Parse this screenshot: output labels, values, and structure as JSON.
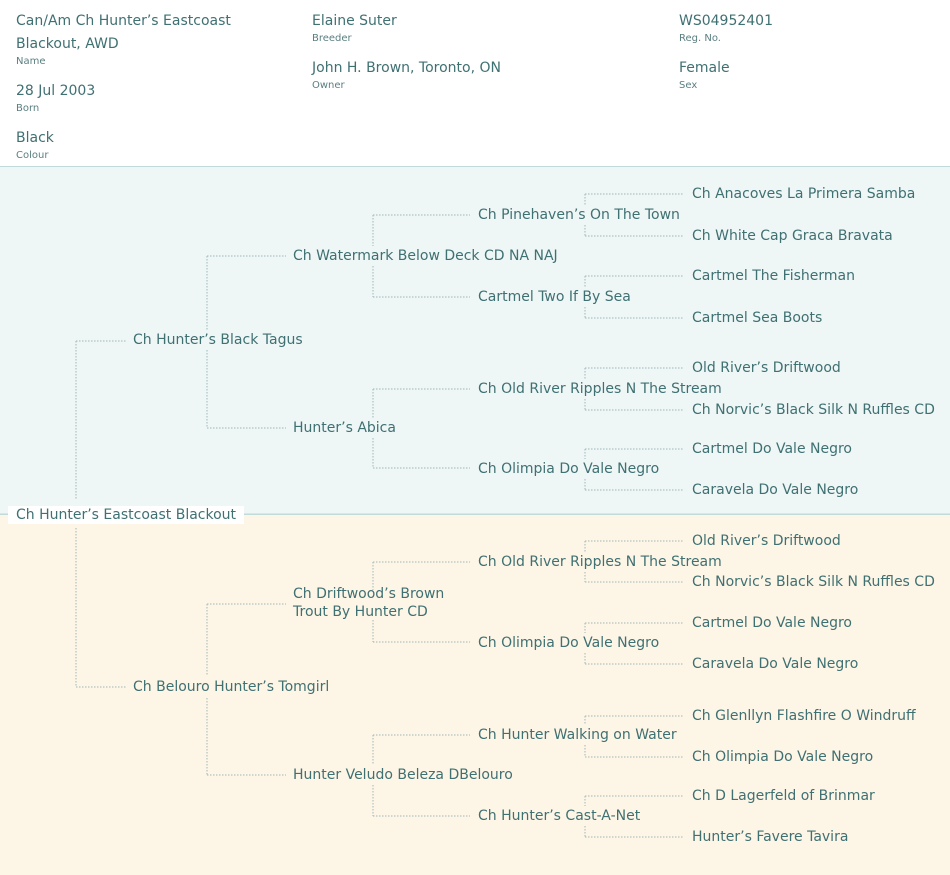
{
  "info": {
    "name_line1": "Can/Am Ch Hunter’s Eastcoast",
    "name_line2": "Blackout, AWD",
    "name_label": "Name",
    "born": "28 Jul 2003",
    "born_label": "Born",
    "colour": "Black",
    "colour_label": "Colour",
    "breeder": "Elaine Suter",
    "breeder_label": "Breeder",
    "owner": "John H. Brown, Toronto, ON",
    "owner_label": "Owner",
    "reg_no": "WS04952401",
    "reg_no_label": "Reg. No.",
    "sex": "Female",
    "sex_label": "Sex"
  },
  "pedigree": {
    "root": "Ch Hunter’s Eastcoast Blackout",
    "sire": {
      "name": "Ch Hunter’s Black Tagus",
      "sire": {
        "name": "Ch Watermark Below Deck CD NA NAJ",
        "sire": {
          "name": "Ch Pinehaven’s On The Town",
          "sire": "Ch Anacoves La Primera Samba",
          "dam": "Ch White Cap Graca Bravata"
        },
        "dam": {
          "name": "Cartmel Two If By Sea",
          "sire": "Cartmel The Fisherman",
          "dam": "Cartmel Sea Boots"
        }
      },
      "dam": {
        "name": "Hunter’s Abica",
        "sire": {
          "name": "Ch Old River Ripples N The Stream",
          "sire": "Old River’s Driftwood",
          "dam": "Ch Norvic’s Black Silk N Ruffles CD"
        },
        "dam": {
          "name": "Ch Olimpia Do Vale Negro",
          "sire": "Cartmel Do Vale Negro",
          "dam": "Caravela Do Vale Negro"
        }
      }
    },
    "dam": {
      "name": "Ch Belouro Hunter’s Tomgirl",
      "sire": {
        "name_line1": "Ch Driftwood’s Brown",
        "name_line2": "Trout By Hunter CD",
        "sire": {
          "name": "Ch Old River Ripples N The Stream",
          "sire": "Old River’s Driftwood",
          "dam": "Ch Norvic’s Black Silk N Ruffles CD"
        },
        "dam": {
          "name": "Ch Olimpia Do Vale Negro",
          "sire": "Cartmel Do Vale Negro",
          "dam": "Caravela Do Vale Negro"
        }
      },
      "dam": {
        "name": "Hunter Veludo Beleza DBelouro",
        "sire": {
          "name": "Ch Hunter Walking on Water",
          "sire": "Ch Glenllyn Flashfire O Windruff",
          "dam": "Ch Olimpia Do Vale Negro"
        },
        "dam": {
          "name": "Ch Hunter’s Cast-A-Net",
          "sire": "Ch D Lagerfeld of Brinmar",
          "dam": "Hunter’s Favere Tavira"
        }
      }
    }
  },
  "colors": {
    "sire_band": "#eef6f6",
    "dam_band": "#fdf5e6",
    "text": "#3f7072",
    "connector": "#9fb8b8"
  }
}
